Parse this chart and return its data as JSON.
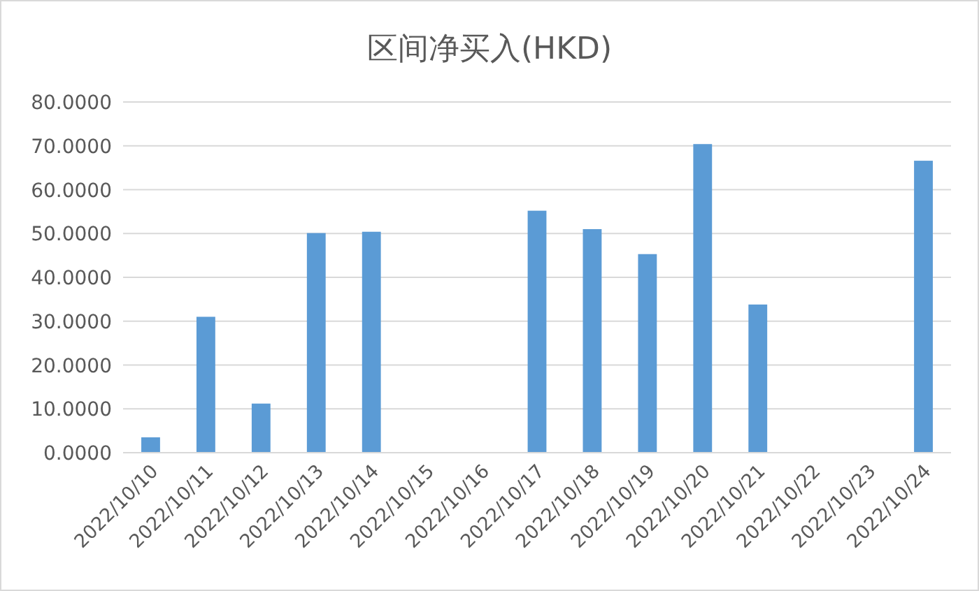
{
  "chart_data": {
    "type": "bar",
    "title": "区间净买入(HKD)",
    "categories": [
      "2022/10/10",
      "2022/10/11",
      "2022/10/12",
      "2022/10/13",
      "2022/10/14",
      "2022/10/15",
      "2022/10/16",
      "2022/10/17",
      "2022/10/18",
      "2022/10/19",
      "2022/10/20",
      "2022/10/21",
      "2022/10/22",
      "2022/10/23",
      "2022/10/24"
    ],
    "values": [
      3.5,
      31,
      11.2,
      50.1,
      50.4,
      0,
      0,
      55.2,
      51,
      45.3,
      70.4,
      33.8,
      0,
      0,
      66.6
    ],
    "color": "#5b9bd5",
    "ylim": [
      0,
      80
    ],
    "yticks": [
      {
        "value": 0,
        "label": "0.0000"
      },
      {
        "value": 10,
        "label": "10.0000"
      },
      {
        "value": 20,
        "label": "20.0000"
      },
      {
        "value": 30,
        "label": "30.0000"
      },
      {
        "value": 40,
        "label": "40.0000"
      },
      {
        "value": 50,
        "label": "50.0000"
      },
      {
        "value": 60,
        "label": "60.0000"
      },
      {
        "value": 70,
        "label": "70.0000"
      },
      {
        "value": 80,
        "label": "80.0000"
      }
    ],
    "grid": "y"
  }
}
